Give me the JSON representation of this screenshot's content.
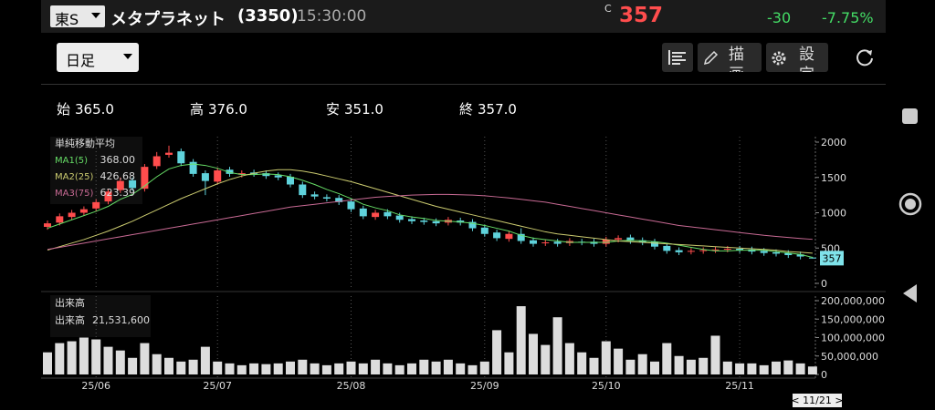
{
  "header": {
    "exchange": "東S",
    "name": "メタプラネット",
    "code": "(3350)",
    "time": "15:30:00",
    "price_prefix": "C",
    "price": 357,
    "change": -30,
    "change_pct": {
      "value": -7.75,
      "label": "-7.75%"
    }
  },
  "toolbar": {
    "period": "日足",
    "draw": "描画",
    "settings": "設定"
  },
  "summary": [
    {
      "label": "始",
      "value": {
        "value": 365,
        "label": "365.0"
      }
    },
    {
      "label": "高",
      "value": {
        "value": 376,
        "label": "376.0"
      }
    },
    {
      "label": "安",
      "value": {
        "value": 351,
        "label": "351.0"
      }
    },
    {
      "label": "終",
      "value": {
        "value": 357,
        "label": "357.0"
      }
    }
  ],
  "footer": {
    "date": "< 11/21 >"
  },
  "chart_data": [
    {
      "type": "candlestick",
      "legend_title": "単純移動平均",
      "up_color": "#ff4d4d",
      "down_color": "#5fd3dc",
      "categories": [
        null,
        null,
        null,
        null,
        "25/06",
        null,
        null,
        null,
        null,
        null,
        null,
        null,
        null,
        null,
        "25/07",
        null,
        null,
        null,
        null,
        null,
        null,
        null,
        null,
        null,
        null,
        "25/08",
        null,
        null,
        null,
        null,
        null,
        null,
        null,
        null,
        null,
        null,
        "25/09",
        null,
        null,
        null,
        null,
        null,
        null,
        null,
        null,
        null,
        "25/10",
        null,
        null,
        null,
        null,
        null,
        null,
        null,
        null,
        null,
        null,
        "25/11",
        null,
        null,
        null,
        null,
        null,
        null
      ],
      "open": [
        800,
        860,
        940,
        1000,
        1060,
        1160,
        1320,
        1460,
        1340,
        1660,
        1820,
        1870,
        1720,
        1560,
        1440,
        1610,
        1540,
        1570,
        1560,
        1530,
        1510,
        1400,
        1260,
        1220,
        1210,
        1160,
        1060,
        940,
        1010,
        960,
        910,
        890,
        880,
        860,
        890,
        870,
        790,
        720,
        630,
        700,
        610,
        570,
        590,
        570,
        590,
        590,
        560,
        620,
        650,
        610,
        590,
        530,
        470,
        450,
        460,
        470,
        480,
        490,
        480,
        460,
        440,
        430,
        410,
        365
      ],
      "high": [
        890,
        990,
        1040,
        1090,
        1190,
        1340,
        1500,
        1500,
        1690,
        1860,
        1950,
        1910,
        1760,
        1600,
        1640,
        1650,
        1600,
        1610,
        1600,
        1570,
        1550,
        1440,
        1300,
        1260,
        1250,
        1200,
        1100,
        1040,
        1050,
        1000,
        950,
        930,
        920,
        940,
        930,
        910,
        830,
        760,
        740,
        780,
        650,
        620,
        630,
        640,
        630,
        630,
        660,
        680,
        690,
        650,
        630,
        570,
        510,
        500,
        510,
        520,
        530,
        530,
        520,
        500,
        480,
        470,
        450,
        376
      ],
      "low": [
        760,
        820,
        900,
        960,
        1020,
        1120,
        1280,
        1310,
        1300,
        1620,
        1780,
        1660,
        1510,
        1250,
        1400,
        1510,
        1500,
        1510,
        1480,
        1460,
        1360,
        1210,
        1190,
        1160,
        1110,
        1010,
        910,
        900,
        910,
        860,
        840,
        830,
        810,
        820,
        820,
        740,
        660,
        600,
        590,
        560,
        520,
        530,
        520,
        530,
        540,
        520,
        520,
        580,
        560,
        540,
        480,
        420,
        400,
        410,
        420,
        430,
        440,
        430,
        410,
        390,
        380,
        360,
        340,
        351
      ],
      "close": [
        850,
        950,
        1000,
        1050,
        1150,
        1300,
        1450,
        1350,
        1650,
        1800,
        1850,
        1700,
        1550,
        1450,
        1600,
        1550,
        1560,
        1550,
        1520,
        1500,
        1400,
        1250,
        1230,
        1200,
        1150,
        1050,
        950,
        1000,
        950,
        900,
        880,
        870,
        850,
        900,
        860,
        780,
        700,
        640,
        700,
        600,
        560,
        580,
        560,
        600,
        580,
        560,
        620,
        640,
        600,
        580,
        520,
        460,
        440,
        460,
        470,
        480,
        490,
        470,
        450,
        430,
        420,
        400,
        380,
        357
      ],
      "series": [
        {
          "name": "MA1(5)",
          "color": "#66dd66",
          "current": {
            "value": 368,
            "label": "368.00"
          },
          "values": [
            780,
            840,
            900,
            960,
            1020,
            1090,
            1190,
            1260,
            1380,
            1510,
            1620,
            1670,
            1690,
            1670,
            1630,
            1570,
            1540,
            1540,
            1550,
            1540,
            1510,
            1460,
            1400,
            1330,
            1270,
            1200,
            1120,
            1070,
            1030,
            970,
            940,
            920,
            890,
            880,
            870,
            850,
            820,
            780,
            740,
            680,
            640,
            620,
            600,
            580,
            580,
            580,
            580,
            600,
            610,
            600,
            590,
            570,
            540,
            510,
            480,
            460,
            460,
            470,
            470,
            470,
            450,
            430,
            410,
            368
          ]
        },
        {
          "name": "MA2(25)",
          "color": "#cccc70",
          "current": {
            "value": 426.68,
            "label": "426.68"
          },
          "values": [
            470,
            520,
            570,
            620,
            680,
            740,
            810,
            880,
            960,
            1040,
            1120,
            1200,
            1270,
            1340,
            1410,
            1470,
            1520,
            1560,
            1590,
            1610,
            1610,
            1590,
            1560,
            1520,
            1480,
            1440,
            1390,
            1340,
            1290,
            1240,
            1190,
            1140,
            1090,
            1050,
            1010,
            970,
            930,
            890,
            850,
            810,
            770,
            730,
            700,
            680,
            660,
            640,
            620,
            600,
            590,
            580,
            570,
            560,
            550,
            540,
            530,
            520,
            510,
            500,
            490,
            480,
            470,
            450,
            440,
            426.68
          ]
        },
        {
          "name": "MA3(75)",
          "color": "#c86a94",
          "current": {
            "value": 623.39,
            "label": "623.39"
          },
          "values": [
            480,
            510,
            540,
            570,
            600,
            630,
            660,
            690,
            720,
            750,
            780,
            810,
            840,
            870,
            900,
            930,
            960,
            990,
            1020,
            1050,
            1080,
            1100,
            1120,
            1140,
            1160,
            1180,
            1200,
            1220,
            1230,
            1240,
            1250,
            1255,
            1260,
            1260,
            1255,
            1250,
            1240,
            1225,
            1210,
            1190,
            1170,
            1150,
            1120,
            1090,
            1060,
            1030,
            1000,
            970,
            940,
            910,
            880,
            850,
            820,
            800,
            780,
            760,
            740,
            720,
            700,
            680,
            665,
            650,
            635,
            623.39
          ]
        }
      ],
      "ylim": [
        0,
        2000
      ],
      "yticks": [
        0,
        500,
        1000,
        1500,
        2000
      ],
      "grid": true
    },
    {
      "type": "bar",
      "title": "出来高",
      "legend_name": "出来高",
      "legend_value": {
        "value": 21531600,
        "label": "21,531,600"
      },
      "color": "#dddddd",
      "values": [
        60000000,
        85000000,
        90000000,
        100000000,
        95000000,
        75000000,
        65000000,
        45000000,
        85000000,
        55000000,
        45000000,
        35000000,
        40000000,
        75000000,
        35000000,
        30000000,
        25000000,
        30000000,
        28000000,
        30000000,
        35000000,
        40000000,
        30000000,
        25000000,
        30000000,
        35000000,
        30000000,
        40000000,
        30000000,
        25000000,
        30000000,
        40000000,
        35000000,
        40000000,
        30000000,
        25000000,
        35000000,
        120000000,
        60000000,
        185000000,
        110000000,
        80000000,
        155000000,
        85000000,
        60000000,
        45000000,
        90000000,
        70000000,
        40000000,
        55000000,
        35000000,
        85000000,
        50000000,
        40000000,
        45000000,
        105000000,
        35000000,
        30000000,
        30000000,
        25000000,
        35000000,
        38000000,
        30000000,
        21531600
      ],
      "ylim": [
        0,
        200000000
      ],
      "yticks": [
        {
          "value": 0,
          "label": "0"
        },
        {
          "value": 50000000,
          "label": "50,000,000"
        },
        {
          "value": 100000000,
          "label": "100,000,000"
        },
        {
          "value": 150000000,
          "label": "150,000,000"
        },
        {
          "value": 200000000,
          "label": "200,000,000"
        }
      ]
    }
  ]
}
